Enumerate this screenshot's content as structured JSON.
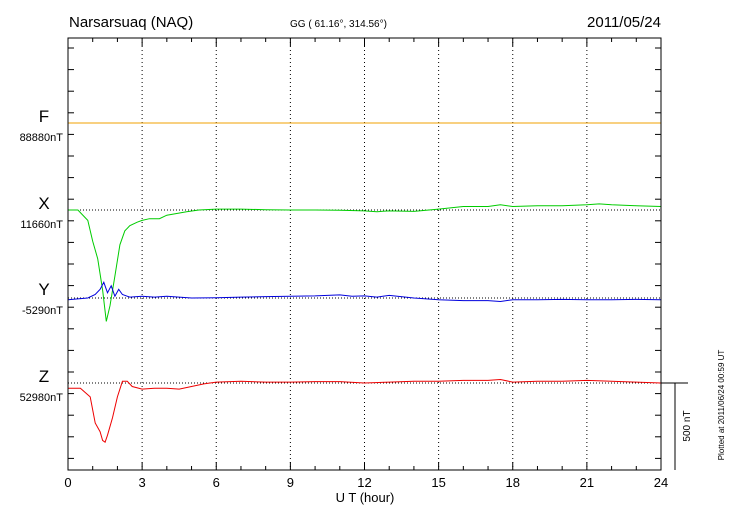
{
  "header": {
    "station": "Narsarsuaq (NAQ)",
    "coords": "GG ( 61.16°, 314.56°)",
    "date": "2011/05/24"
  },
  "footer": {
    "plotted": "Plotted at 2011/06/24 00:59 UT"
  },
  "chart_data": {
    "type": "line",
    "title": "Narsarsuaq (NAQ)",
    "xlabel": "U T (hour)",
    "xlim": [
      0,
      24
    ],
    "x_ticks": [
      "0",
      "3",
      "6",
      "9",
      "12",
      "15",
      "18",
      "21",
      "24"
    ],
    "grid": true,
    "scale_bar": "500 nT",
    "colors": {
      "F": "#f0a000",
      "X": "#00cc00",
      "Y": "#0000dd",
      "Z": "#ee0000"
    },
    "series": [
      {
        "name": "F",
        "baseline_label": "88880nT",
        "baseline": 88880,
        "x": [
          0,
          24
        ],
        "y": [
          88880,
          88880
        ]
      },
      {
        "name": "X",
        "baseline_label": "11660nT",
        "baseline": 11660,
        "x": [
          0,
          0.4,
          0.8,
          1.0,
          1.2,
          1.4,
          1.55,
          1.7,
          1.9,
          2.1,
          2.3,
          2.5,
          2.8,
          3.0,
          3.3,
          3.7,
          4.0,
          4.4,
          4.8,
          5.3,
          6.0,
          7.0,
          8.0,
          9.0,
          10.0,
          11.0,
          12.0,
          12.5,
          13.0,
          14.0,
          15.0,
          16.0,
          17.0,
          17.5,
          18.0,
          19.0,
          20.0,
          21.0,
          21.5,
          22.0,
          23.0,
          24.0
        ],
        "y": [
          11660,
          11660,
          11600,
          11480,
          11380,
          11200,
          11020,
          11110,
          11280,
          11460,
          11540,
          11570,
          11590,
          11600,
          11610,
          11610,
          11630,
          11640,
          11650,
          11660,
          11665,
          11665,
          11662,
          11660,
          11660,
          11658,
          11655,
          11650,
          11655,
          11652,
          11665,
          11680,
          11680,
          11690,
          11680,
          11685,
          11685,
          11690,
          11695,
          11690,
          11685,
          11680
        ]
      },
      {
        "name": "Y",
        "baseline_label": "-5290nT",
        "baseline": -5290,
        "x": [
          0,
          0.4,
          0.8,
          1.1,
          1.3,
          1.45,
          1.6,
          1.75,
          1.9,
          2.05,
          2.2,
          2.5,
          3.0,
          3.5,
          4.0,
          5.0,
          6.0,
          7.0,
          8.0,
          9.0,
          10.0,
          11.0,
          11.5,
          12.0,
          12.5,
          13.0,
          14.0,
          15.0,
          16.0,
          17.0,
          17.5,
          18.0,
          19.0,
          20.0,
          21.0,
          22.0,
          23.0,
          24.0
        ],
        "y": [
          -5300,
          -5295,
          -5290,
          -5270,
          -5240,
          -5200,
          -5260,
          -5220,
          -5280,
          -5240,
          -5270,
          -5285,
          -5280,
          -5285,
          -5280,
          -5290,
          -5288,
          -5285,
          -5282,
          -5280,
          -5278,
          -5272,
          -5280,
          -5278,
          -5285,
          -5275,
          -5290,
          -5300,
          -5305,
          -5305,
          -5310,
          -5300,
          -5300,
          -5298,
          -5300,
          -5300,
          -5298,
          -5300
        ]
      },
      {
        "name": "Z",
        "baseline_label": "52980nT",
        "baseline": 52980,
        "x": [
          0,
          0.5,
          0.9,
          1.1,
          1.3,
          1.4,
          1.5,
          1.6,
          1.8,
          2.0,
          2.2,
          2.4,
          2.6,
          3.0,
          3.5,
          4.0,
          4.5,
          5.0,
          5.5,
          6.0,
          7.0,
          8.0,
          9.0,
          10.0,
          11.0,
          12.0,
          13.0,
          14.0,
          15.0,
          16.0,
          17.0,
          17.5,
          18.0,
          19.0,
          20.0,
          21.0,
          22.0,
          23.0,
          24.0
        ],
        "y": [
          52950,
          52950,
          52900,
          52750,
          52700,
          52650,
          52640,
          52680,
          52780,
          52900,
          52990,
          52990,
          52960,
          52945,
          52950,
          52950,
          52945,
          52960,
          52975,
          52985,
          52990,
          52985,
          52985,
          52988,
          52988,
          52980,
          52985,
          52990,
          52990,
          52995,
          52995,
          53000,
          52985,
          52990,
          52990,
          52995,
          52990,
          52985,
          52980
        ]
      }
    ]
  }
}
